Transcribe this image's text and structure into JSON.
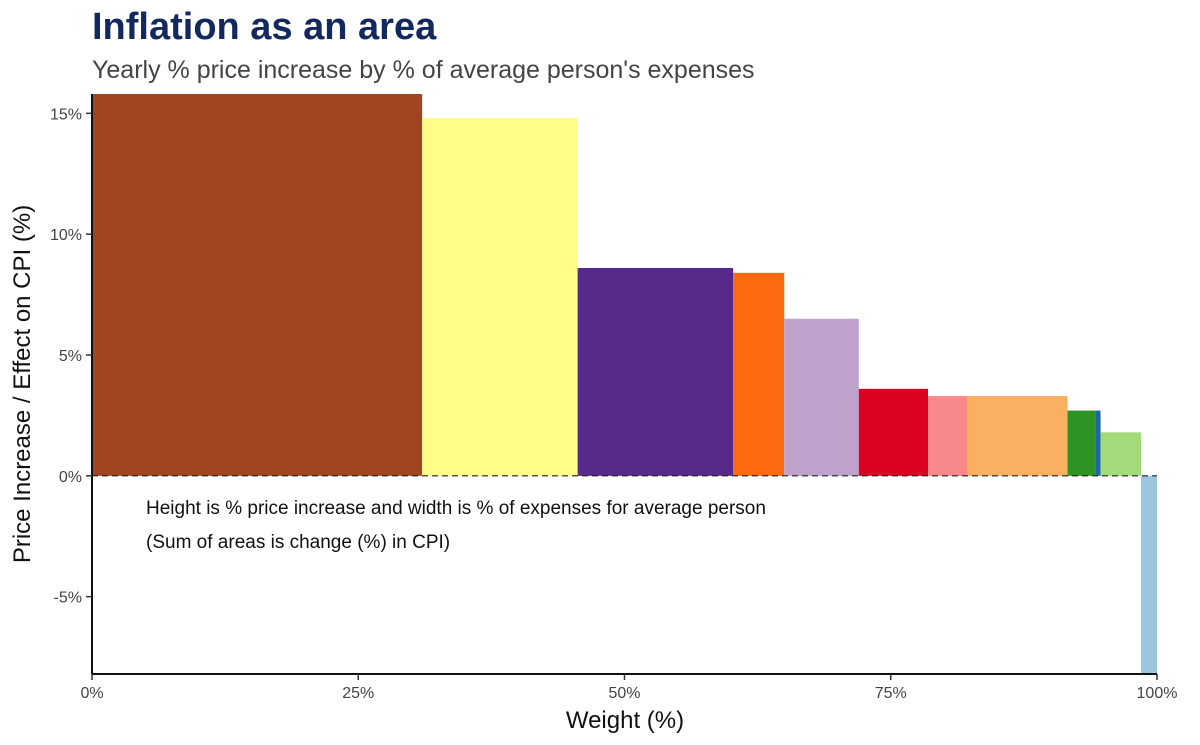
{
  "title": "Inflation as an area",
  "subtitle": "Yearly % price increase by % of average person's expenses",
  "chart_data": {
    "type": "variable-width-bar",
    "title": "Inflation as an area",
    "subtitle": "Yearly % price increase by % of average person's expenses",
    "xlabel": "Weight (%)",
    "ylabel": "Price Increase / Effect on CPI (%)",
    "xlim": [
      0,
      100
    ],
    "ylim": [
      -8.2,
      15.8
    ],
    "x_ticks": [
      0,
      25,
      50,
      75,
      100
    ],
    "x_tick_labels": [
      "0%",
      "25%",
      "50%",
      "75%",
      "100%"
    ],
    "y_ticks": [
      -5,
      0,
      5,
      10,
      15
    ],
    "y_tick_labels": [
      "-5%",
      "0%",
      "5%",
      "10%",
      "15%"
    ],
    "grid": false,
    "reference_line": {
      "y": 0,
      "style": "dashed"
    },
    "annotation": [
      "Height is % price increase and width is % of expenses for average person",
      "(Sum of areas is change (%) in CPI)"
    ],
    "bars": [
      {
        "x_start": 0.0,
        "x_end": 31.0,
        "value": 15.8,
        "color": "#a04520"
      },
      {
        "x_start": 31.0,
        "x_end": 45.6,
        "value": 14.8,
        "color": "#ffff88"
      },
      {
        "x_start": 45.6,
        "x_end": 60.2,
        "value": 8.6,
        "color": "#57298a"
      },
      {
        "x_start": 60.2,
        "x_end": 65.0,
        "value": 8.4,
        "color": "#fd690f"
      },
      {
        "x_start": 65.0,
        "x_end": 72.0,
        "value": 6.5,
        "color": "#bea2cc"
      },
      {
        "x_start": 72.0,
        "x_end": 78.5,
        "value": 3.6,
        "color": "#dc0021"
      },
      {
        "x_start": 78.5,
        "x_end": 82.2,
        "value": 3.3,
        "color": "#f8888a"
      },
      {
        "x_start": 82.2,
        "x_end": 91.6,
        "value": 3.3,
        "color": "#fab061"
      },
      {
        "x_start": 91.6,
        "x_end": 94.2,
        "value": 2.7,
        "color": "#2b9423"
      },
      {
        "x_start": 94.2,
        "x_end": 94.7,
        "value": 2.7,
        "color": "#1f66a5"
      },
      {
        "x_start": 94.7,
        "x_end": 98.5,
        "value": 1.8,
        "color": "#a3da7a"
      },
      {
        "x_start": 98.5,
        "x_end": 100.0,
        "value": -8.2,
        "color": "#9bc6e0"
      }
    ]
  }
}
